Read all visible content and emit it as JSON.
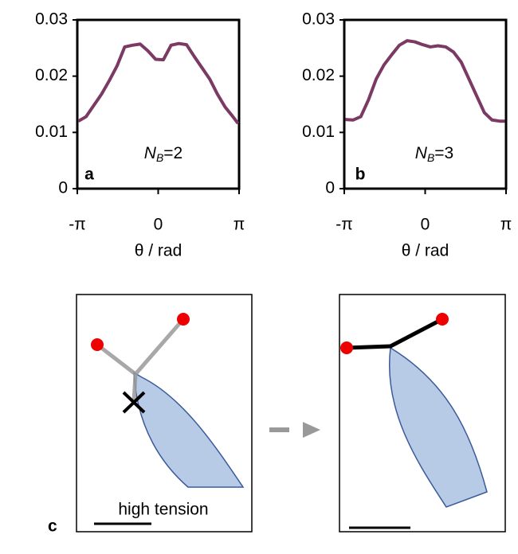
{
  "chart_data": [
    {
      "type": "line",
      "panel": "a",
      "annotation_main": "N",
      "annotation_sub": "B",
      "annotation_value": "=2",
      "x_label": "θ / rad",
      "x": [
        -3.1,
        -2.8,
        -2.5,
        -2.2,
        -1.9,
        -1.6,
        -1.3,
        -1.0,
        -0.7,
        -0.4,
        -0.1,
        0.2,
        0.5,
        0.8,
        1.1,
        1.4,
        1.7,
        2.0,
        2.3,
        2.6,
        2.9,
        3.1
      ],
      "series": [
        {
          "color": "#7b3a63",
          "values": [
            0.012,
            0.0128,
            0.0148,
            0.0168,
            0.0192,
            0.0218,
            0.0252,
            0.0255,
            0.0257,
            0.0245,
            0.023,
            0.0229,
            0.0255,
            0.0258,
            0.0256,
            0.0235,
            0.0215,
            0.0195,
            0.0168,
            0.0145,
            0.0128,
            0.0116
          ]
        }
      ],
      "xlim": [
        -3.1416,
        3.1416
      ],
      "xticks": [
        {
          "value": -3.1416,
          "label": "-π"
        },
        0,
        {
          "value": 3.1416,
          "label": "π"
        }
      ],
      "ylim": [
        0,
        0.03
      ],
      "yticks": [
        0,
        0.01,
        0.02,
        0.03
      ]
    },
    {
      "type": "line",
      "panel": "b",
      "annotation_main": "N",
      "annotation_sub": "B",
      "annotation_value": "=3",
      "x_label": "θ / rad",
      "x": [
        -3.1,
        -2.8,
        -2.5,
        -2.2,
        -1.9,
        -1.6,
        -1.3,
        -1.0,
        -0.7,
        -0.4,
        -0.1,
        0.2,
        0.5,
        0.8,
        1.1,
        1.4,
        1.7,
        2.0,
        2.3,
        2.6,
        2.9,
        3.1
      ],
      "series": [
        {
          "color": "#7b3a63",
          "values": [
            0.0123,
            0.0122,
            0.0128,
            0.0158,
            0.0195,
            0.022,
            0.0238,
            0.0255,
            0.0263,
            0.0261,
            0.0256,
            0.0252,
            0.0254,
            0.0252,
            0.0243,
            0.0225,
            0.0195,
            0.0165,
            0.0135,
            0.0122,
            0.012,
            0.012
          ]
        }
      ],
      "xlim": [
        -3.1416,
        3.1416
      ],
      "xticks": [
        {
          "value": -3.1416,
          "label": "-π"
        },
        0,
        {
          "value": 3.1416,
          "label": "π"
        }
      ],
      "ylim": [
        0,
        0.03
      ],
      "yticks": [
        0,
        0.01,
        0.02,
        0.03
      ]
    }
  ],
  "diagram": {
    "panel": "c",
    "caption": "high tension"
  }
}
